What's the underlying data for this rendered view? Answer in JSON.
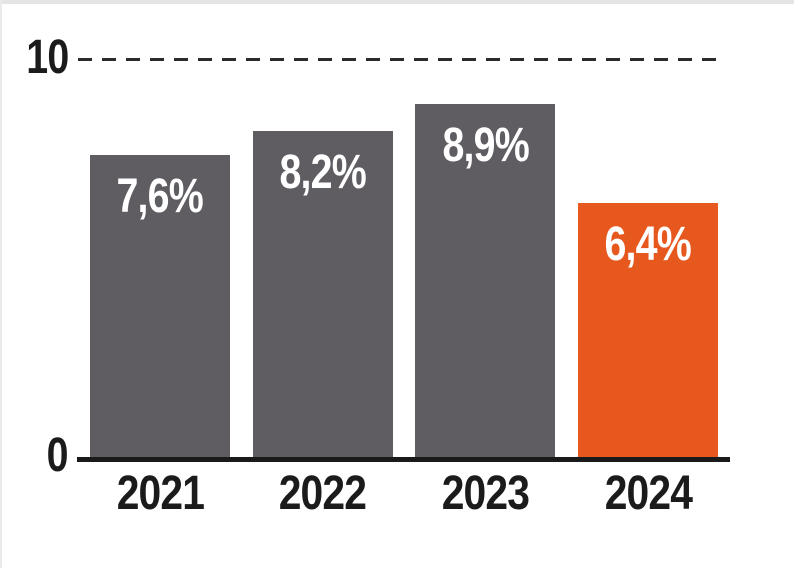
{
  "chart_data": {
    "type": "bar",
    "categories": [
      "2021",
      "2022",
      "2023",
      "2024"
    ],
    "values": [
      7.6,
      8.2,
      8.9,
      6.4
    ],
    "value_labels": [
      "7,6%",
      "8,2%",
      "8,9%",
      "6,4%"
    ],
    "title": "",
    "xlabel": "",
    "ylabel": "",
    "ylim": [
      0,
      10
    ],
    "y_tick_labels": {
      "top": "10",
      "zero": "0"
    },
    "gridline": "dashed horizontal line at y = 10",
    "legend": "none",
    "bar_colors": [
      "#5F5C62",
      "#5F5C62",
      "#5F5C62",
      "#E7581F"
    ]
  },
  "colors": {
    "bar_gray": "#5F5C62",
    "bar_orange": "#E7581F",
    "axis": "#1A1A1A",
    "grid_dash": "#2B2B2B",
    "text": "#1C1B1C",
    "value_text": "#FFFFFF",
    "frame_border": "#E4E4E4"
  }
}
